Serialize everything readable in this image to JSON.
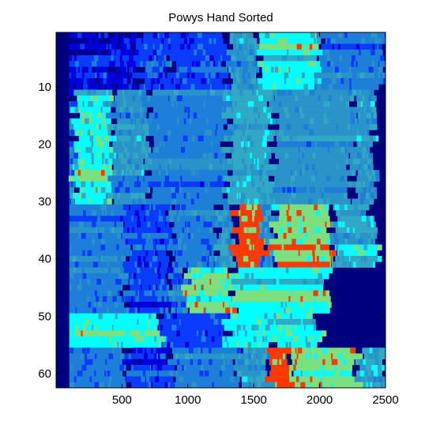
{
  "chart_data": {
    "type": "heatmap",
    "title": "Powys Hand Sorted",
    "xlabel": "",
    "ylabel": "",
    "xlim": [
      0,
      2500
    ],
    "ylim": [
      62.5,
      0.5
    ],
    "x_ticks": [
      500,
      1000,
      1500,
      2000,
      2500
    ],
    "y_ticks": [
      10,
      20,
      30,
      40,
      50,
      60
    ],
    "grid": false,
    "legend": "none",
    "colormap": "jet",
    "colors": {
      "background": "#00007f",
      "palette": [
        "#00008f",
        "#0000dd",
        "#0a3cff",
        "#1e7fd8",
        "#2a93c8",
        "#31a9c4",
        "#00ffff",
        "#7de07f",
        "#ff3a00"
      ]
    },
    "row_groups": [
      {
        "rows": [
          1,
          10
        ],
        "bands": [
          [
            100,
            420,
            1
          ],
          [
            420,
            640,
            1
          ],
          [
            640,
            880,
            2
          ],
          [
            880,
            1300,
            2
          ],
          [
            1300,
            1550,
            4
          ],
          [
            1550,
            2000,
            6
          ],
          [
            2000,
            2500,
            3
          ]
        ]
      },
      {
        "rows": [
          11,
          30
        ],
        "bands": [
          [
            100,
            140,
            3
          ],
          [
            140,
            420,
            6
          ],
          [
            420,
            700,
            4
          ],
          [
            700,
            1300,
            3
          ],
          [
            1300,
            1650,
            5
          ],
          [
            1650,
            2250,
            4
          ],
          [
            2250,
            2400,
            4
          ]
        ]
      },
      {
        "rows": [
          31,
          41
        ],
        "bands": [
          [
            100,
            540,
            3
          ],
          [
            540,
            880,
            2
          ],
          [
            880,
            1230,
            3
          ],
          [
            1230,
            1350,
            4
          ],
          [
            1350,
            1580,
            8
          ],
          [
            1580,
            1650,
            4
          ],
          [
            1650,
            2100,
            7
          ],
          [
            2100,
            2400,
            5
          ]
        ]
      },
      {
        "rows": [
          42,
          49
        ],
        "bands": [
          [
            100,
            520,
            3
          ],
          [
            520,
            880,
            2
          ],
          [
            880,
            990,
            3
          ],
          [
            990,
            1350,
            7
          ],
          [
            1350,
            2050,
            6
          ]
        ]
      },
      {
        "rows": [
          50,
          55
        ],
        "bands": [
          [
            100,
            800,
            6
          ],
          [
            800,
            1300,
            2
          ],
          [
            1300,
            1650,
            6
          ],
          [
            1650,
            2000,
            6
          ]
        ]
      },
      {
        "rows": [
          56,
          62
        ],
        "bands": [
          [
            100,
            540,
            3
          ],
          [
            540,
            880,
            2
          ],
          [
            880,
            1380,
            3
          ],
          [
            1380,
            1620,
            4
          ],
          [
            1620,
            1800,
            8
          ],
          [
            1800,
            2300,
            7
          ],
          [
            2300,
            2500,
            5
          ]
        ]
      }
    ]
  }
}
